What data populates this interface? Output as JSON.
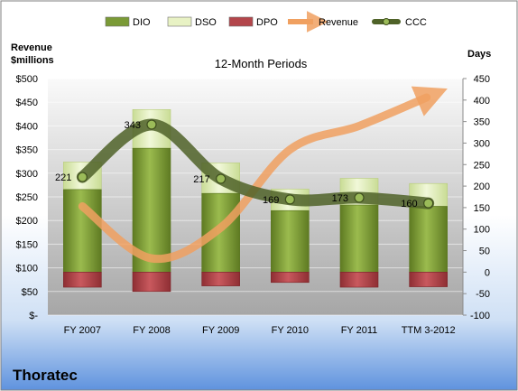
{
  "company": "Thoratec",
  "chart_data": {
    "type": "bar",
    "title": "12-Month Periods",
    "left_axis_title": [
      "Revenue",
      "$millions"
    ],
    "right_axis_title": "Days",
    "categories": [
      "FY 2007",
      "FY 2008",
      "FY 2009",
      "FY 2010",
      "FY 2011",
      "TTM 3-2012"
    ],
    "left_axis": {
      "min": 0,
      "max": 500,
      "step": 50,
      "tick_labels": [
        "$-",
        "$50",
        "$100",
        "$150",
        "$200",
        "$250",
        "$300",
        "$350",
        "$400",
        "$450",
        "$500"
      ]
    },
    "right_axis": {
      "min": -100,
      "max": 450,
      "step": 50,
      "tick_labels": [
        "-100",
        "-50",
        "0",
        "50",
        "100",
        "150",
        "200",
        "250",
        "300",
        "350",
        "400",
        "450"
      ]
    },
    "legend": {
      "position": "top",
      "items": [
        {
          "name": "DIO",
          "color": "#7a9a36"
        },
        {
          "name": "DSO",
          "color": "#e8f2c4"
        },
        {
          "name": "DPO",
          "color": "#b3464b"
        },
        {
          "name": "Revenue",
          "color": "#f0a060"
        },
        {
          "name": "CCC",
          "color": "#4f6228"
        }
      ]
    },
    "series": [
      {
        "name": "DIO",
        "axis": "days",
        "values": [
          192,
          288,
          183,
          143,
          156,
          153
        ]
      },
      {
        "name": "DSO",
        "axis": "days",
        "values": [
          64,
          90,
          71,
          50,
          62,
          53
        ]
      },
      {
        "name": "DPO",
        "axis": "days",
        "values": [
          -35,
          -45,
          -32,
          -24,
          -35,
          -34
        ]
      },
      {
        "name": "Revenue",
        "axis": "$millions",
        "values": [
          230,
          120,
          185,
          350,
          400,
          460
        ]
      },
      {
        "name": "CCC",
        "axis": "days",
        "values": [
          221,
          343,
          217,
          169,
          173,
          160
        ],
        "data_labels": [
          "221",
          "343",
          "217",
          "169",
          "173",
          "160"
        ]
      }
    ]
  }
}
